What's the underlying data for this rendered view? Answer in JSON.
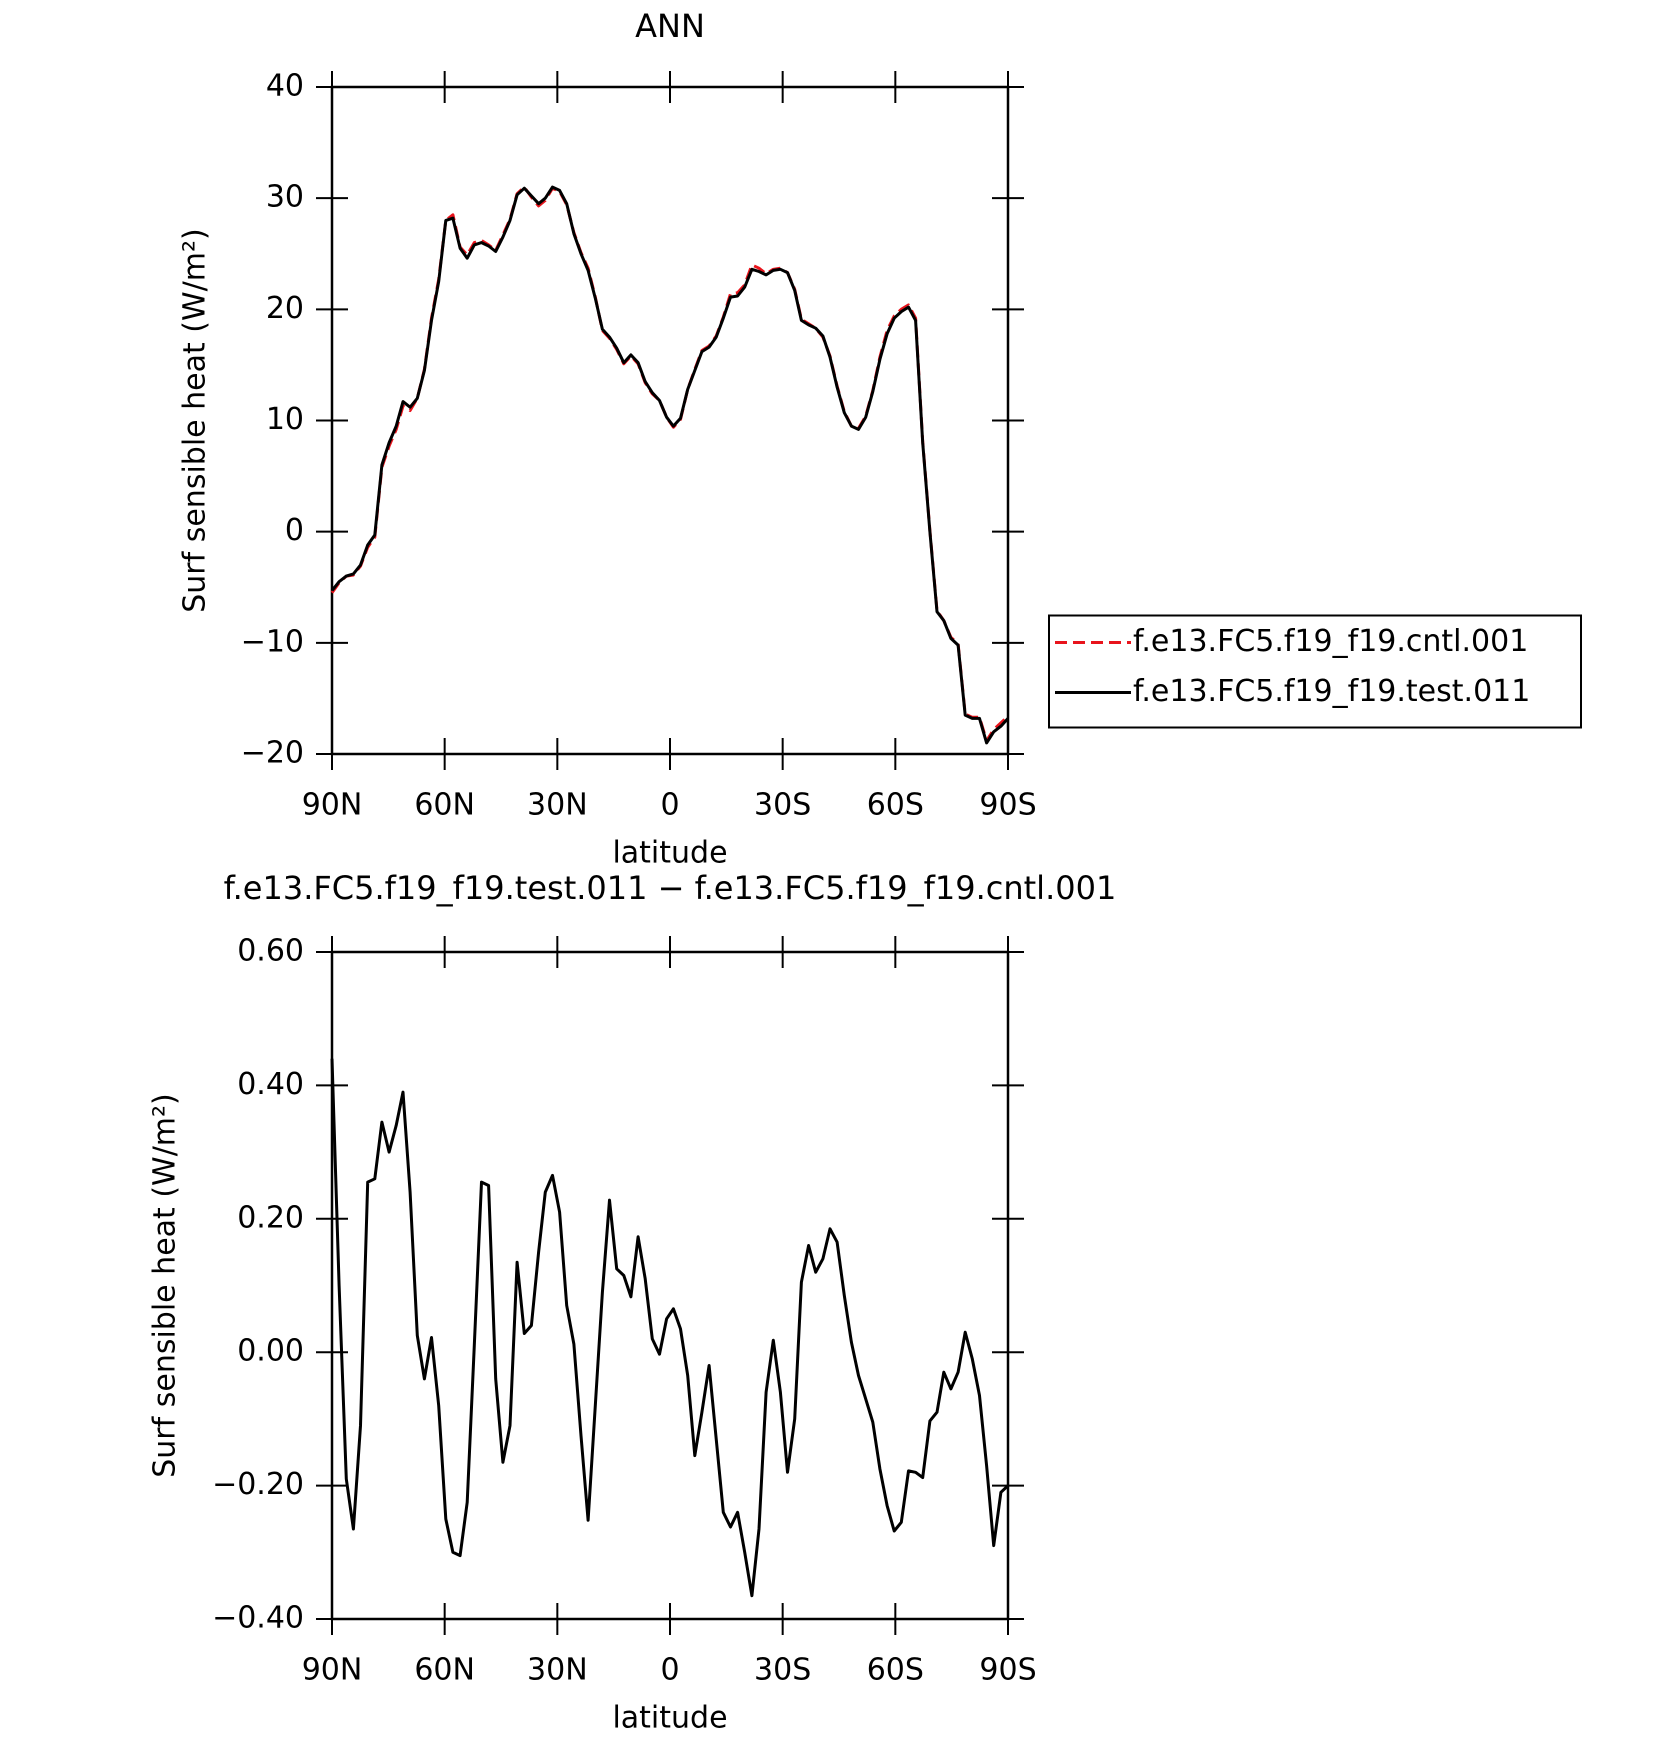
{
  "chart_data": [
    {
      "type": "line",
      "title": "ANN",
      "xlabel": "latitude",
      "ylabel": "Surf sensible heat (W/m²)",
      "x": [
        90,
        88.1,
        86.2,
        84.3,
        82.4,
        80.5,
        78.6,
        76.7,
        74.8,
        72.9,
        71.1,
        69.2,
        67.3,
        65.4,
        63.5,
        61.6,
        59.7,
        57.8,
        55.9,
        54.0,
        52.1,
        50.2,
        48.3,
        46.4,
        44.5,
        42.6,
        40.7,
        38.8,
        36.9,
        35.0,
        33.2,
        31.3,
        29.4,
        27.5,
        25.6,
        23.7,
        21.8,
        19.9,
        18.0,
        16.1,
        14.2,
        12.3,
        10.4,
        8.5,
        6.6,
        4.7,
        2.8,
        0.9,
        -0.9,
        -2.8,
        -4.7,
        -6.6,
        -8.5,
        -10.4,
        -12.3,
        -14.2,
        -16.1,
        -18.0,
        -19.9,
        -21.8,
        -23.7,
        -25.6,
        -27.5,
        -29.4,
        -31.3,
        -33.2,
        -35.0,
        -36.9,
        -38.8,
        -40.7,
        -42.6,
        -44.5,
        -46.4,
        -48.3,
        -50.2,
        -52.1,
        -54.0,
        -55.9,
        -57.8,
        -59.7,
        -61.6,
        -63.5,
        -65.4,
        -67.3,
        -69.2,
        -71.1,
        -72.9,
        -74.8,
        -76.7,
        -78.6,
        -80.5,
        -82.4,
        -84.3,
        -86.2,
        -88.1,
        -90
      ],
      "series": [
        {
          "name": "f.e13.FC5.f19_f19.cntl.001",
          "color": "#e8141c",
          "dashed": true,
          "values": [
            -5.5,
            -4.6,
            -4.0,
            -3.9,
            -3.1,
            -1.4,
            -0.5,
            5.8,
            7.7,
            9.2,
            11.3,
            10.9,
            12.0,
            14.6,
            19.2,
            22.7,
            28.0,
            28.5,
            25.6,
            24.9,
            26.0,
            26.2,
            25.8,
            25.3,
            26.7,
            28.1,
            30.4,
            31.0,
            30.1,
            29.3,
            29.8,
            30.9,
            30.6,
            29.4,
            26.9,
            25.1,
            23.7,
            21.1,
            18.1,
            17.4,
            16.4,
            15.1,
            15.8,
            15.1,
            13.4,
            12.4,
            11.8,
            10.3,
            9.4,
            10.1,
            12.8,
            14.6,
            16.3,
            16.7,
            17.6,
            19.3,
            21.4,
            21.5,
            22.2,
            24.0,
            23.7,
            23.2,
            23.6,
            23.7,
            23.3,
            21.8,
            19.1,
            18.7,
            18.3,
            17.5,
            15.8,
            13.1,
            10.8,
            9.5,
            9.3,
            10.4,
            12.7,
            15.7,
            18.1,
            19.4,
            20.0,
            20.4,
            19.2,
            8.1,
            0.1,
            -7.1,
            -8.0,
            -9.5,
            -10.1,
            -16.4,
            -16.7,
            -16.7,
            -18.8,
            -17.8,
            -17.2,
            -16.6
          ]
        },
        {
          "name": "f.e13.FC5.f19_f19.test.011",
          "color": "#000000",
          "dashed": false,
          "values": [
            -5.3,
            -4.5,
            -4.0,
            -3.8,
            -3.0,
            -1.2,
            -0.3,
            6.0,
            8.0,
            9.5,
            11.7,
            11.2,
            12.0,
            14.5,
            19.0,
            22.5,
            28.0,
            28.2,
            25.5,
            24.6,
            25.8,
            26.0,
            25.7,
            25.2,
            26.5,
            28.0,
            30.3,
            30.9,
            30.2,
            29.5,
            30.0,
            31.0,
            30.7,
            29.5,
            26.8,
            25.0,
            23.5,
            21.0,
            18.2,
            17.5,
            16.5,
            15.2,
            15.9,
            15.2,
            13.5,
            12.5,
            11.8,
            10.3,
            9.5,
            10.2,
            12.8,
            14.5,
            16.2,
            16.6,
            17.5,
            19.2,
            21.1,
            21.2,
            22.0,
            23.6,
            23.4,
            23.1,
            23.5,
            23.6,
            23.3,
            21.7,
            19.0,
            18.6,
            18.3,
            17.6,
            15.7,
            13.0,
            10.7,
            9.5,
            9.2,
            10.3,
            12.6,
            15.5,
            17.8,
            19.2,
            19.8,
            20.2,
            19.0,
            8.0,
            0.0,
            -7.2,
            -8.0,
            -9.6,
            -10.2,
            -16.5,
            -16.8,
            -16.8,
            -19.0,
            -18.0,
            -17.5,
            -16.8
          ]
        }
      ],
      "xlim": [
        90,
        -90
      ],
      "ylim": [
        -20,
        40
      ],
      "xticks": [
        {
          "value": 90,
          "label": "90N"
        },
        {
          "value": 60,
          "label": "60N"
        },
        {
          "value": 30,
          "label": "30N"
        },
        0,
        {
          "value": -30,
          "label": "30S"
        },
        {
          "value": -60,
          "label": "60S"
        },
        {
          "value": -90,
          "label": "90S"
        }
      ],
      "yticks": [
        {
          "value": -20,
          "label": "−20"
        },
        {
          "value": -10,
          "label": "−10"
        },
        0,
        10,
        20,
        30,
        40
      ],
      "legend": "right"
    },
    {
      "type": "line",
      "title": "f.e13.FC5.f19_f19.test.011 − f.e13.FC5.f19_f19.cntl.001",
      "xlabel": "latitude",
      "ylabel": "Surf sensible heat (W/m²)",
      "x": [
        90,
        88.1,
        86.2,
        84.3,
        82.4,
        80.5,
        78.6,
        76.7,
        74.8,
        72.9,
        71.1,
        69.2,
        67.3,
        65.4,
        63.5,
        61.6,
        59.7,
        57.8,
        55.9,
        54.0,
        52.1,
        50.2,
        48.3,
        46.4,
        44.5,
        42.6,
        40.7,
        38.8,
        36.9,
        35.0,
        33.2,
        31.3,
        29.4,
        27.5,
        25.6,
        23.7,
        21.8,
        19.9,
        18.0,
        16.1,
        14.2,
        12.3,
        10.4,
        8.5,
        6.6,
        4.7,
        2.8,
        0.9,
        -0.9,
        -2.8,
        -4.7,
        -6.6,
        -8.5,
        -10.4,
        -12.3,
        -14.2,
        -16.1,
        -18.0,
        -19.9,
        -21.8,
        -23.7,
        -25.6,
        -27.5,
        -29.4,
        -31.3,
        -33.2,
        -35.0,
        -36.9,
        -38.8,
        -40.7,
        -42.6,
        -44.5,
        -46.4,
        -48.3,
        -50.2,
        -52.1,
        -54.0,
        -55.9,
        -57.8,
        -59.7,
        -61.6,
        -63.5,
        -65.4,
        -67.3,
        -69.2,
        -71.1,
        -72.9,
        -74.8,
        -76.7,
        -78.6,
        -80.5,
        -82.4,
        -84.3,
        -86.2,
        -88.1,
        -90
      ],
      "series": [
        {
          "color": "#000000",
          "dashed": false,
          "values": [
            0.44,
            0.1,
            -0.19,
            -0.265,
            -0.11,
            0.255,
            0.26,
            0.345,
            0.3,
            0.34,
            0.39,
            0.24,
            0.025,
            -0.04,
            0.022,
            -0.08,
            -0.25,
            -0.3,
            -0.305,
            -0.225,
            0.01,
            0.255,
            0.25,
            -0.04,
            -0.165,
            -0.11,
            0.135,
            0.028,
            0.04,
            0.15,
            0.24,
            0.265,
            0.21,
            0.07,
            0.012,
            -0.125,
            -0.252,
            -0.08,
            0.09,
            0.228,
            0.125,
            0.115,
            0.083,
            0.173,
            0.11,
            0.02,
            -0.003,
            0.05,
            0.065,
            0.035,
            -0.035,
            -0.155,
            -0.09,
            -0.02,
            -0.13,
            -0.24,
            -0.262,
            -0.24,
            -0.3,
            -0.365,
            -0.265,
            -0.06,
            0.018,
            -0.06,
            -0.18,
            -0.1,
            0.105,
            0.16,
            0.12,
            0.14,
            0.185,
            0.165,
            0.085,
            0.015,
            -0.035,
            -0.07,
            -0.105,
            -0.175,
            -0.23,
            -0.268,
            -0.255,
            -0.178,
            -0.18,
            -0.188,
            -0.103,
            -0.09,
            -0.03,
            -0.055,
            -0.03,
            0.03,
            -0.01,
            -0.065,
            -0.17,
            -0.29,
            -0.21,
            -0.2
          ]
        }
      ],
      "xlim": [
        90,
        -90
      ],
      "ylim": [
        -0.4,
        0.6
      ],
      "xticks": [
        {
          "value": 90,
          "label": "90N"
        },
        {
          "value": 60,
          "label": "60N"
        },
        {
          "value": 30,
          "label": "30N"
        },
        0,
        {
          "value": -30,
          "label": "30S"
        },
        {
          "value": -60,
          "label": "60S"
        },
        {
          "value": -90,
          "label": "90S"
        }
      ],
      "yticks": [
        {
          "value": -0.4,
          "label": "−0.40"
        },
        {
          "value": -0.2,
          "label": "−0.20"
        },
        {
          "value": 0,
          "label": "0.00"
        },
        {
          "value": 0.2,
          "label": "0.20"
        },
        {
          "value": 0.4,
          "label": "0.40"
        },
        {
          "value": 0.6,
          "label": "0.60"
        }
      ]
    }
  ]
}
